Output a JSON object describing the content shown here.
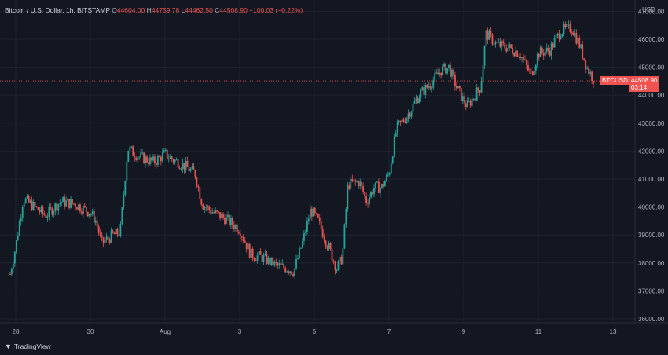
{
  "header": {
    "symbol": "Bitcoin / U.S. Dollar, 1h, BITSTAMP",
    "open_label": "O",
    "open": "44604.00",
    "high_label": "H",
    "high": "44759.78",
    "low_label": "L",
    "low": "44462.50",
    "close_label": "C",
    "close": "44508.90",
    "change": "−100.03 (−0.22%)"
  },
  "currency": "USD",
  "price_tag": {
    "ticker": "BTCUSD",
    "price": "44508.90",
    "countdown": "03:14"
  },
  "footer": {
    "brand": "TradingView",
    "logo_icon": "tradingview-logo-icon"
  },
  "colors": {
    "up": "#26a69a",
    "down": "#ef5350",
    "background": "#131722",
    "grid": "#1f2331"
  },
  "chart_data": {
    "type": "candlestick",
    "x_tick_labels": [
      "28",
      "30",
      "Aug",
      "3",
      "5",
      "7",
      "9",
      "11",
      "13"
    ],
    "y_tick_labels": [
      "36000.00",
      "37000.00",
      "38000.00",
      "39000.00",
      "40000.00",
      "41000.00",
      "42000.00",
      "43000.00",
      "44000.00",
      "45000.00",
      "46000.00",
      "47000.00"
    ],
    "ylim": [
      35700,
      47300
    ],
    "last_price": 44508.9,
    "trend_points": [
      [
        27.85,
        37600
      ],
      [
        28.0,
        38600
      ],
      [
        28.2,
        40300
      ],
      [
        28.5,
        40000
      ],
      [
        28.8,
        39700
      ],
      [
        29.2,
        40200
      ],
      [
        29.6,
        40100
      ],
      [
        30.0,
        39800
      ],
      [
        30.15,
        39500
      ],
      [
        30.3,
        38700
      ],
      [
        30.6,
        39000
      ],
      [
        30.8,
        39100
      ],
      [
        31.0,
        42100
      ],
      [
        31.3,
        41800
      ],
      [
        31.7,
        41600
      ],
      [
        32.0,
        41900
      ],
      [
        32.2,
        41700
      ],
      [
        32.5,
        41500
      ],
      [
        32.8,
        41200
      ],
      [
        33.0,
        40100
      ],
      [
        33.3,
        39800
      ],
      [
        33.6,
        39600
      ],
      [
        34.0,
        39200
      ],
      [
        34.3,
        38300
      ],
      [
        34.6,
        38200
      ],
      [
        35.0,
        37900
      ],
      [
        35.3,
        37800
      ],
      [
        35.45,
        37700
      ],
      [
        35.7,
        38800
      ],
      [
        35.9,
        39900
      ],
      [
        36.1,
        39500
      ],
      [
        36.4,
        38500
      ],
      [
        36.6,
        37800
      ],
      [
        36.75,
        38200
      ],
      [
        36.9,
        40800
      ],
      [
        37.2,
        40900
      ],
      [
        37.4,
        40200
      ],
      [
        37.6,
        40700
      ],
      [
        37.8,
        40700
      ],
      [
        38.0,
        41200
      ],
      [
        38.2,
        42800
      ],
      [
        38.5,
        43300
      ],
      [
        38.8,
        44000
      ],
      [
        39.1,
        44400
      ],
      [
        39.4,
        44900
      ],
      [
        39.6,
        45000
      ],
      [
        39.8,
        44300
      ],
      [
        40.0,
        43800
      ],
      [
        40.1,
        43600
      ],
      [
        40.3,
        44000
      ],
      [
        40.45,
        44300
      ],
      [
        40.6,
        46200
      ],
      [
        40.9,
        45800
      ],
      [
        41.2,
        45700
      ],
      [
        41.5,
        45500
      ],
      [
        41.8,
        44700
      ],
      [
        42.0,
        45500
      ],
      [
        42.3,
        45600
      ],
      [
        42.6,
        46300
      ],
      [
        42.9,
        46400
      ],
      [
        43.1,
        45800
      ],
      [
        43.3,
        45000
      ],
      [
        43.5,
        44508.9
      ]
    ]
  }
}
